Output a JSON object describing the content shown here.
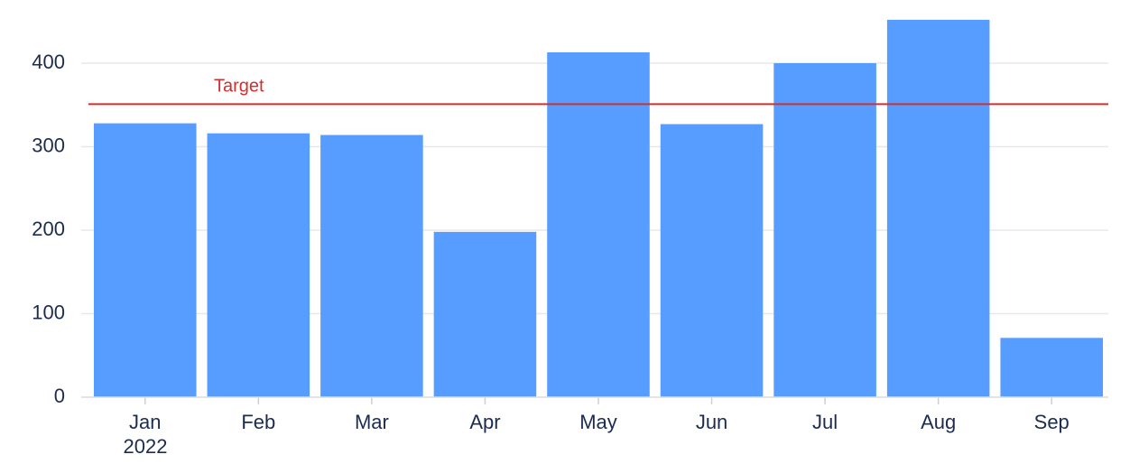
{
  "chart_data": {
    "type": "bar",
    "categories": [
      "Jan",
      "Feb",
      "Mar",
      "Apr",
      "May",
      "Jun",
      "Jul",
      "Aug",
      "Sep"
    ],
    "year": "2022",
    "values": [
      328,
      316,
      314,
      198,
      413,
      327,
      400,
      452,
      71
    ],
    "color": "#579dff",
    "ylim": [
      0,
      460
    ],
    "yticks": [
      0,
      100,
      200,
      300,
      400
    ],
    "grid": true,
    "target": {
      "label": "Target",
      "value": 351,
      "color": "#d32f2f"
    }
  }
}
